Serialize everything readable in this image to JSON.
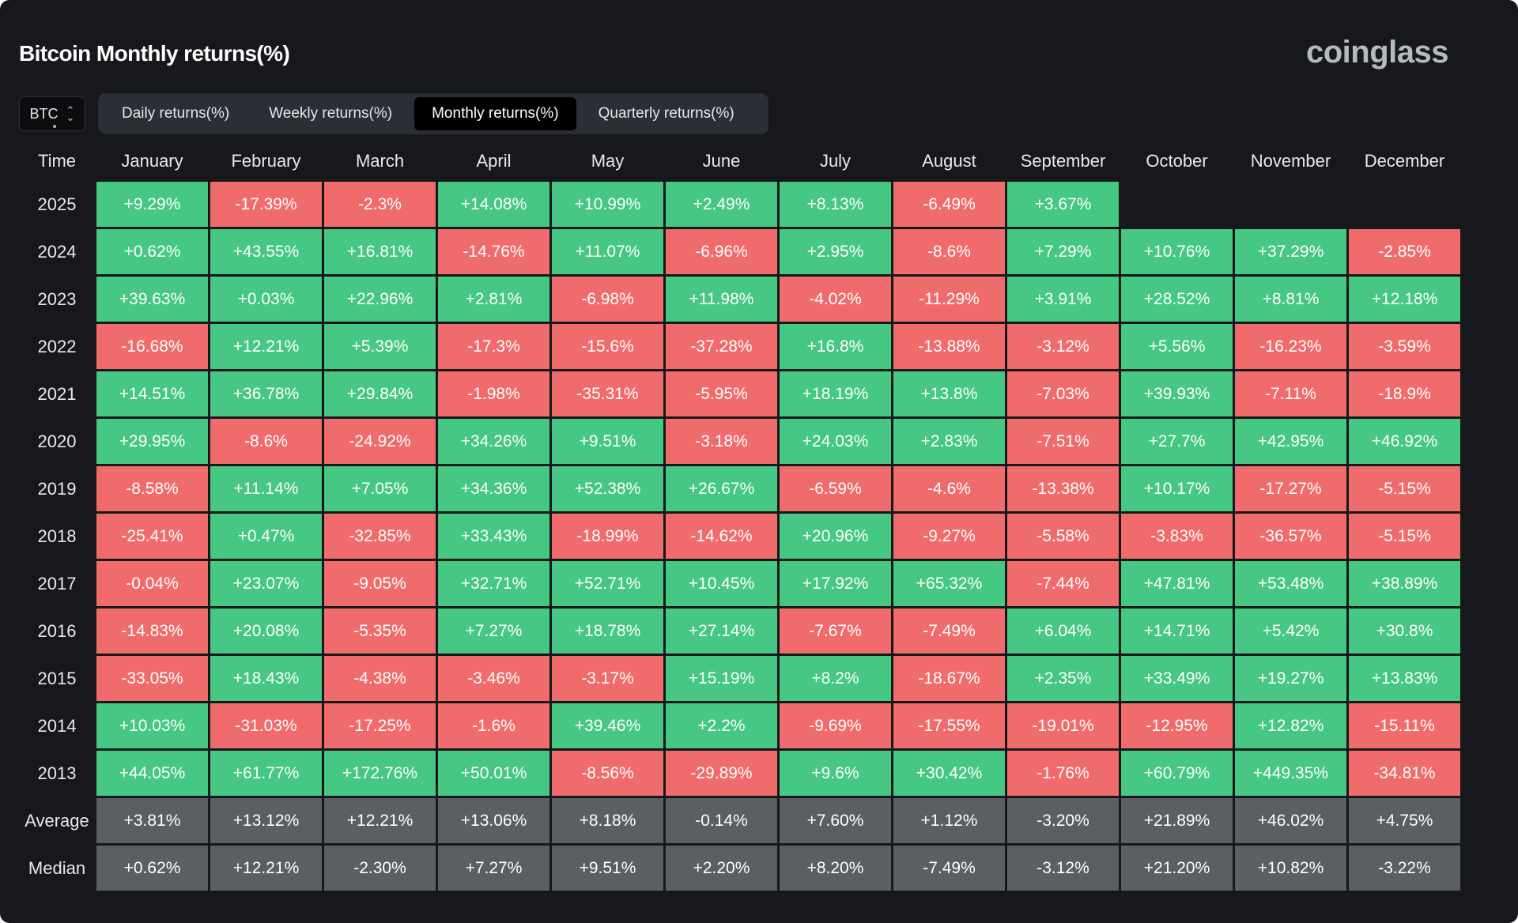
{
  "header": {
    "title": "Bitcoin Monthly returns(%)",
    "brand": "coinglass"
  },
  "asset_selector": {
    "value": "BTC"
  },
  "tabs": [
    {
      "label": "Daily returns(%)",
      "active": false
    },
    {
      "label": "Weekly returns(%)",
      "active": false
    },
    {
      "label": "Monthly returns(%)",
      "active": true
    },
    {
      "label": "Quarterly returns(%)",
      "active": false
    }
  ],
  "colors": {
    "positive": "#46c783",
    "negative": "#f06c6c",
    "summary": "#5b5e63",
    "background": "#16181c"
  },
  "chart_data": {
    "type": "heatmap",
    "title": "Bitcoin Monthly returns(%)",
    "corner_label": "Time",
    "columns": [
      "January",
      "February",
      "March",
      "April",
      "May",
      "June",
      "July",
      "August",
      "September",
      "October",
      "November",
      "December"
    ],
    "rows": [
      {
        "label": "2025",
        "values": [
          "+9.29%",
          "-17.39%",
          "-2.3%",
          "+14.08%",
          "+10.99%",
          "+2.49%",
          "+8.13%",
          "-6.49%",
          "+3.67%",
          "",
          "",
          ""
        ]
      },
      {
        "label": "2024",
        "values": [
          "+0.62%",
          "+43.55%",
          "+16.81%",
          "-14.76%",
          "+11.07%",
          "-6.96%",
          "+2.95%",
          "-8.6%",
          "+7.29%",
          "+10.76%",
          "+37.29%",
          "-2.85%"
        ]
      },
      {
        "label": "2023",
        "values": [
          "+39.63%",
          "+0.03%",
          "+22.96%",
          "+2.81%",
          "-6.98%",
          "+11.98%",
          "-4.02%",
          "-11.29%",
          "+3.91%",
          "+28.52%",
          "+8.81%",
          "+12.18%"
        ]
      },
      {
        "label": "2022",
        "values": [
          "-16.68%",
          "+12.21%",
          "+5.39%",
          "-17.3%",
          "-15.6%",
          "-37.28%",
          "+16.8%",
          "-13.88%",
          "-3.12%",
          "+5.56%",
          "-16.23%",
          "-3.59%"
        ]
      },
      {
        "label": "2021",
        "values": [
          "+14.51%",
          "+36.78%",
          "+29.84%",
          "-1.98%",
          "-35.31%",
          "-5.95%",
          "+18.19%",
          "+13.8%",
          "-7.03%",
          "+39.93%",
          "-7.11%",
          "-18.9%"
        ]
      },
      {
        "label": "2020",
        "values": [
          "+29.95%",
          "-8.6%",
          "-24.92%",
          "+34.26%",
          "+9.51%",
          "-3.18%",
          "+24.03%",
          "+2.83%",
          "-7.51%",
          "+27.7%",
          "+42.95%",
          "+46.92%"
        ]
      },
      {
        "label": "2019",
        "values": [
          "-8.58%",
          "+11.14%",
          "+7.05%",
          "+34.36%",
          "+52.38%",
          "+26.67%",
          "-6.59%",
          "-4.6%",
          "-13.38%",
          "+10.17%",
          "-17.27%",
          "-5.15%"
        ]
      },
      {
        "label": "2018",
        "values": [
          "-25.41%",
          "+0.47%",
          "-32.85%",
          "+33.43%",
          "-18.99%",
          "-14.62%",
          "+20.96%",
          "-9.27%",
          "-5.58%",
          "-3.83%",
          "-36.57%",
          "-5.15%"
        ]
      },
      {
        "label": "2017",
        "values": [
          "-0.04%",
          "+23.07%",
          "-9.05%",
          "+32.71%",
          "+52.71%",
          "+10.45%",
          "+17.92%",
          "+65.32%",
          "-7.44%",
          "+47.81%",
          "+53.48%",
          "+38.89%"
        ]
      },
      {
        "label": "2016",
        "values": [
          "-14.83%",
          "+20.08%",
          "-5.35%",
          "+7.27%",
          "+18.78%",
          "+27.14%",
          "-7.67%",
          "-7.49%",
          "+6.04%",
          "+14.71%",
          "+5.42%",
          "+30.8%"
        ]
      },
      {
        "label": "2015",
        "values": [
          "-33.05%",
          "+18.43%",
          "-4.38%",
          "-3.46%",
          "-3.17%",
          "+15.19%",
          "+8.2%",
          "-18.67%",
          "+2.35%",
          "+33.49%",
          "+19.27%",
          "+13.83%"
        ]
      },
      {
        "label": "2014",
        "values": [
          "+10.03%",
          "-31.03%",
          "-17.25%",
          "-1.6%",
          "+39.46%",
          "+2.2%",
          "-9.69%",
          "-17.55%",
          "-19.01%",
          "-12.95%",
          "+12.82%",
          "-15.11%"
        ]
      },
      {
        "label": "2013",
        "values": [
          "+44.05%",
          "+61.77%",
          "+172.76%",
          "+50.01%",
          "-8.56%",
          "-29.89%",
          "+9.6%",
          "+30.42%",
          "-1.76%",
          "+60.79%",
          "+449.35%",
          "-34.81%"
        ]
      }
    ],
    "summary_rows": [
      {
        "label": "Average",
        "values": [
          "+3.81%",
          "+13.12%",
          "+12.21%",
          "+13.06%",
          "+8.18%",
          "-0.14%",
          "+7.60%",
          "+1.12%",
          "-3.20%",
          "+21.89%",
          "+46.02%",
          "+4.75%"
        ]
      },
      {
        "label": "Median",
        "values": [
          "+0.62%",
          "+12.21%",
          "-2.30%",
          "+7.27%",
          "+9.51%",
          "+2.20%",
          "+8.20%",
          "-7.49%",
          "-3.12%",
          "+21.20%",
          "+10.82%",
          "-3.22%"
        ]
      }
    ]
  }
}
